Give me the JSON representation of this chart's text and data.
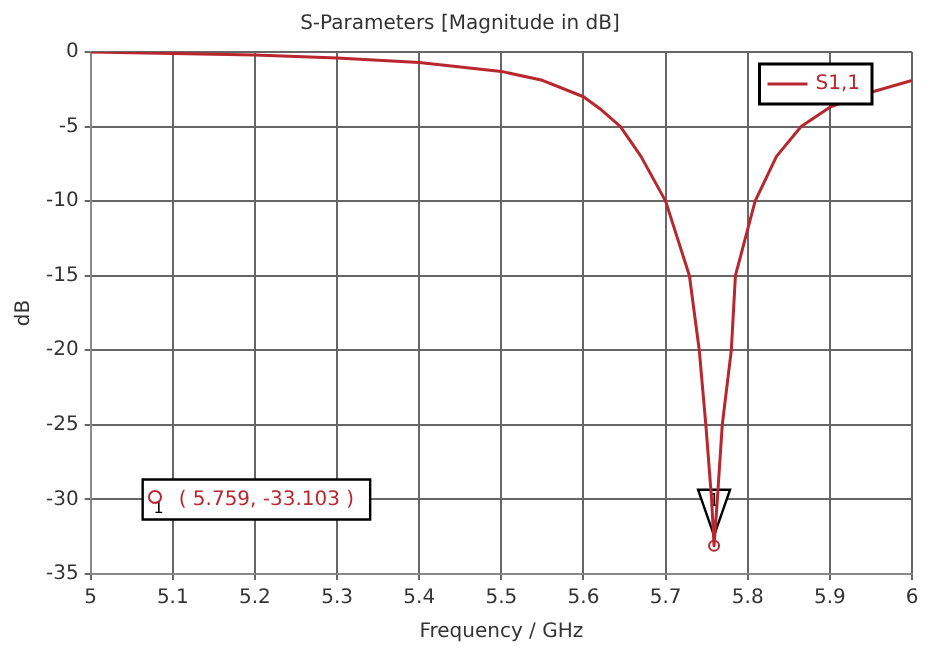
{
  "chart_data": {
    "type": "line",
    "title": "S-Parameters [Magnitude in dB]",
    "xlabel": "Frequency / GHz",
    "ylabel": "dB",
    "x": [
      5.0,
      5.1,
      5.2,
      5.3,
      5.4,
      5.5,
      5.55,
      5.6,
      5.62,
      5.645,
      5.67,
      5.7,
      5.729,
      5.741,
      5.749,
      5.756,
      5.759,
      5.763,
      5.769,
      5.78,
      5.785,
      5.809,
      5.835,
      5.865,
      5.9,
      5.95,
      6.0
    ],
    "series": [
      {
        "name": "S1,1",
        "color": "#b8262e",
        "values": [
          0,
          -0.1,
          -0.2,
          -0.4,
          -0.7,
          -1.3,
          -1.9,
          -3.0,
          -3.8,
          -5.0,
          -7.0,
          -10.0,
          -15.0,
          -20.0,
          -25.0,
          -30.0,
          -33.103,
          -30.0,
          -25.0,
          -20.0,
          -15.0,
          -10.0,
          -7.0,
          -5.0,
          -3.7,
          -2.7,
          -1.9
        ]
      }
    ],
    "xlim": [
      5,
      6
    ],
    "xticks": [
      5,
      5.1,
      5.2,
      5.3,
      5.4,
      5.5,
      5.6,
      5.7,
      5.8,
      5.9,
      6
    ],
    "ylim": [
      -35,
      0
    ],
    "yticks": [
      -35,
      -30,
      -25,
      -20,
      -15,
      -10,
      -5,
      0
    ],
    "grid": true,
    "legend": "top right",
    "marker": "none",
    "line_style": "solid",
    "annotations": [
      {
        "text": "1",
        "x": 5.759,
        "y": -33.103
      },
      "( 5.759, -33.103 )"
    ]
  }
}
